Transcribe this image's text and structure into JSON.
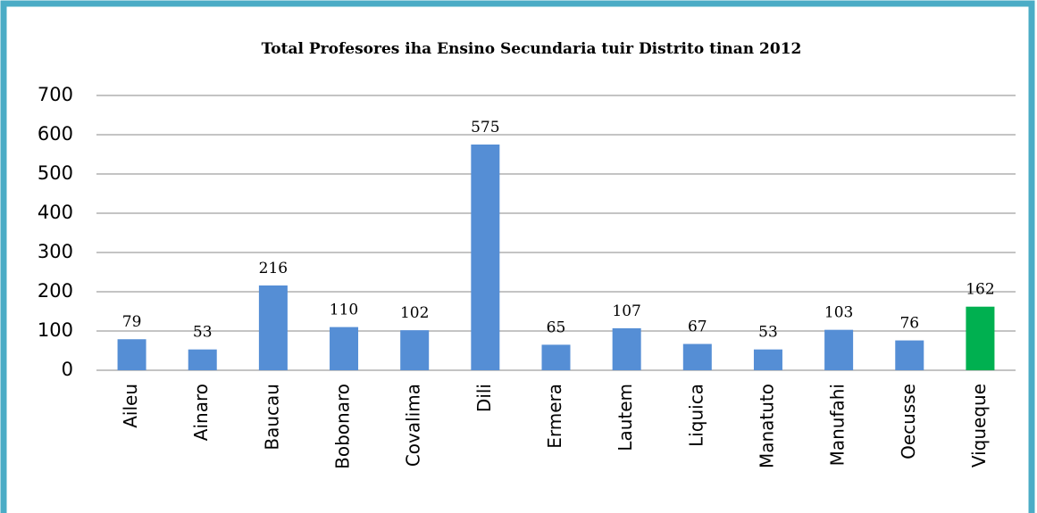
{
  "chart_data": {
    "type": "bar",
    "title": "Total Profesores iha Ensino Secundaria tuir Distrito tinan 2012",
    "categories": [
      "Aileu",
      "Ainaro",
      "Baucau",
      "Bobonaro",
      "Covalima",
      "Dili",
      "Ermera",
      "Lautem",
      "Liquica",
      "Manatuto",
      "Manufahi",
      "Oecusse",
      "Viqueque"
    ],
    "values": [
      79,
      53,
      216,
      110,
      102,
      575,
      65,
      107,
      67,
      53,
      103,
      76,
      162
    ],
    "colors": [
      "#558ed5",
      "#558ed5",
      "#558ed5",
      "#558ed5",
      "#558ed5",
      "#558ed5",
      "#558ed5",
      "#558ed5",
      "#558ed5",
      "#558ed5",
      "#558ed5",
      "#558ed5",
      "#00b050"
    ],
    "ylim": [
      0,
      700
    ],
    "yticks": [
      0,
      100,
      200,
      300,
      400,
      500,
      600,
      700
    ],
    "grid": true
  }
}
